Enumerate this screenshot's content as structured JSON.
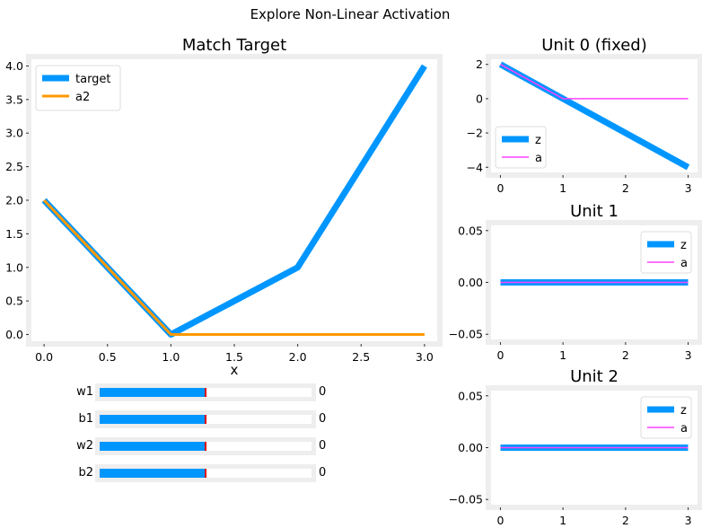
{
  "figure": {
    "suptitle": "Explore Non-Linear Activation"
  },
  "colors": {
    "blue": "#0096ff",
    "orange": "#ff9900",
    "magenta": "#ff40ff",
    "frame": "#eeeeee"
  },
  "chart_data": [
    {
      "id": "main",
      "type": "line",
      "title": "Match Target",
      "xlabel": "x",
      "ylabel": "",
      "xlim": [
        -0.1,
        3.1
      ],
      "ylim": [
        -0.1,
        4.1
      ],
      "xticks": [
        0.0,
        0.5,
        1.0,
        1.5,
        2.0,
        2.5,
        3.0
      ],
      "xticklabels": [
        "0.0",
        "0.5",
        "1.0",
        "1.5",
        "2.0",
        "2.5",
        "3.0"
      ],
      "yticks": [
        0.0,
        0.5,
        1.0,
        1.5,
        2.0,
        2.5,
        3.0,
        3.5,
        4.0
      ],
      "yticklabels": [
        "0.0",
        "0.5",
        "1.0",
        "1.5",
        "2.0",
        "2.5",
        "3.0",
        "3.5",
        "4.0"
      ],
      "legend": "top-left",
      "grid": false,
      "series": [
        {
          "name": "target",
          "color": "#0096ff",
          "x": [
            0,
            1,
            2,
            3
          ],
          "y": [
            2,
            0,
            1,
            4
          ]
        },
        {
          "name": "a2",
          "color": "#ff9900",
          "x": [
            0,
            1,
            2,
            3
          ],
          "y": [
            2,
            0,
            0,
            0
          ]
        }
      ]
    },
    {
      "id": "unit0",
      "type": "line",
      "title": "Unit 0 (fixed)",
      "xlim": [
        -0.15,
        3.15
      ],
      "ylim": [
        -4.3,
        2.3
      ],
      "xticks": [
        0,
        1,
        2,
        3
      ],
      "xticklabels": [
        "0",
        "1",
        "2",
        "3"
      ],
      "yticks": [
        2,
        0,
        -2,
        -4
      ],
      "yticklabels": [
        "2",
        "0",
        "−2",
        "−4"
      ],
      "legend": "bottom-left",
      "grid": false,
      "series": [
        {
          "name": "z",
          "color": "#0096ff",
          "x": [
            0,
            1,
            2,
            3
          ],
          "y": [
            2,
            0,
            -2,
            -4
          ]
        },
        {
          "name": "a",
          "color": "#ff40ff",
          "x": [
            0,
            1,
            2,
            3
          ],
          "y": [
            2,
            0,
            0,
            0
          ]
        }
      ]
    },
    {
      "id": "unit1",
      "type": "line",
      "title": "Unit 1",
      "xlim": [
        -0.15,
        3.15
      ],
      "ylim": [
        -0.055,
        0.055
      ],
      "xticks": [
        0,
        1,
        2,
        3
      ],
      "xticklabels": [
        "0",
        "1",
        "2",
        "3"
      ],
      "yticks": [
        0.05,
        0.0,
        -0.05
      ],
      "yticklabels": [
        "0.05",
        "0.00",
        "−0.05"
      ],
      "legend": "top-right",
      "grid": false,
      "series": [
        {
          "name": "z",
          "color": "#0096ff",
          "x": [
            0,
            1,
            2,
            3
          ],
          "y": [
            0,
            0,
            0,
            0
          ]
        },
        {
          "name": "a",
          "color": "#ff40ff",
          "x": [
            0,
            1,
            2,
            3
          ],
          "y": [
            0,
            0,
            0,
            0
          ]
        }
      ]
    },
    {
      "id": "unit2",
      "type": "line",
      "title": "Unit 2",
      "xlim": [
        -0.15,
        3.15
      ],
      "ylim": [
        -0.055,
        0.055
      ],
      "xticks": [
        0,
        1,
        2,
        3
      ],
      "xticklabels": [
        "0",
        "1",
        "2",
        "3"
      ],
      "yticks": [
        0.05,
        0.0,
        -0.05
      ],
      "yticklabels": [
        "0.05",
        "0.00",
        "−0.05"
      ],
      "legend": "top-right",
      "grid": false,
      "series": [
        {
          "name": "z",
          "color": "#0096ff",
          "x": [
            0,
            1,
            2,
            3
          ],
          "y": [
            0,
            0,
            0,
            0
          ]
        },
        {
          "name": "a",
          "color": "#ff40ff",
          "x": [
            0,
            1,
            2,
            3
          ],
          "y": [
            0,
            0,
            0,
            0
          ]
        }
      ]
    }
  ],
  "sliders": [
    {
      "label": "w1",
      "value": "0",
      "fraction": 0.5
    },
    {
      "label": "b1",
      "value": "0",
      "fraction": 0.5
    },
    {
      "label": "w2",
      "value": "0",
      "fraction": 0.5
    },
    {
      "label": "b2",
      "value": "0",
      "fraction": 0.5
    }
  ]
}
